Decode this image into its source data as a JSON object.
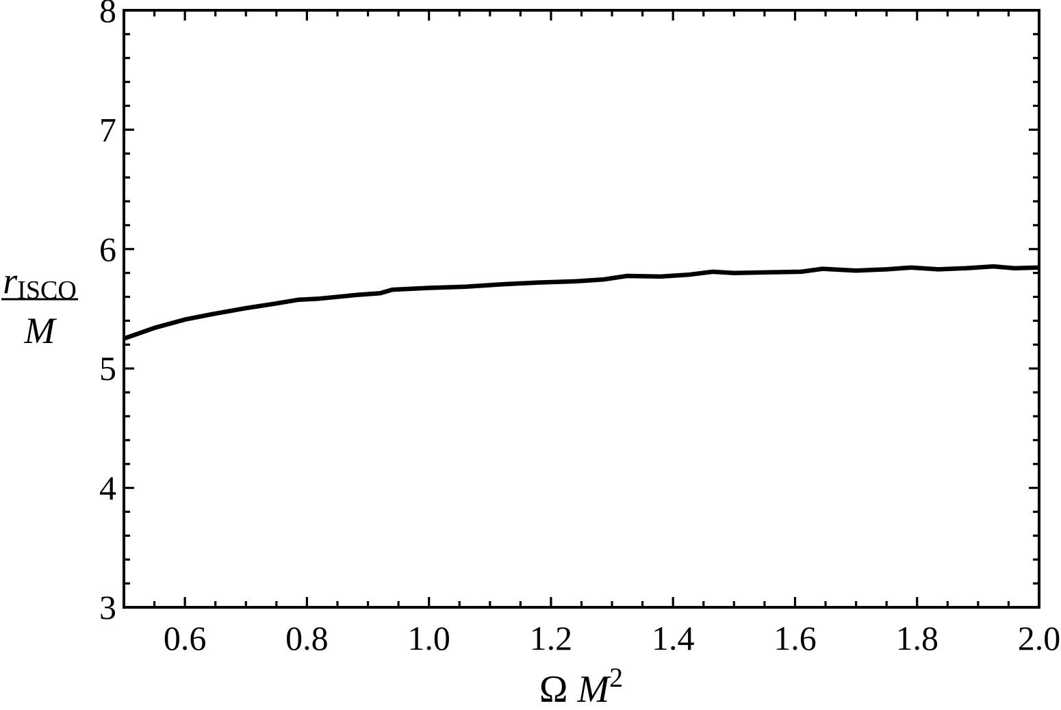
{
  "colors": {
    "background": "#ffffff",
    "frame": "#000000",
    "curve": "#000000",
    "text": "#000000"
  },
  "chart_data": {
    "type": "line",
    "title": "",
    "grid": false,
    "legend": "none",
    "frame": true,
    "xlabel": {
      "base": "Ω ",
      "variable": "M",
      "superscript": "2",
      "plain": "Omega M^2"
    },
    "ylabel": {
      "numerator_variable": "r",
      "numerator_subscript": "ISCO",
      "denominator": "M",
      "plain": "r_ISCO / M"
    },
    "xlim": [
      0.5,
      2.0
    ],
    "ylim": [
      3.0,
      8.0
    ],
    "x_major_ticks": [
      0.6,
      0.8,
      1.0,
      1.2,
      1.4,
      1.6,
      1.8,
      2.0
    ],
    "x_major_tick_labels": [
      "0.6",
      "0.8",
      "1.0",
      "1.2",
      "1.4",
      "1.6",
      "1.8",
      "2.0"
    ],
    "x_minor_tick_step": 0.05,
    "y_major_ticks": [
      3,
      4,
      5,
      6,
      7,
      8
    ],
    "y_major_tick_labels": [
      "3",
      "4",
      "5",
      "6",
      "7",
      "8"
    ],
    "y_minor_tick_step": 0.2,
    "series": [
      {
        "name": "r_ISCO/M",
        "color": "#000000",
        "x": [
          0.5,
          0.55,
          0.6,
          0.645,
          0.7,
          0.75,
          0.785,
          0.82,
          0.88,
          0.92,
          0.94,
          1.0,
          1.06,
          1.12,
          1.18,
          1.24,
          1.285,
          1.325,
          1.38,
          1.425,
          1.465,
          1.5,
          1.555,
          1.61,
          1.645,
          1.7,
          1.75,
          1.79,
          1.835,
          1.88,
          1.925,
          1.96,
          2.0
        ],
        "y": [
          5.25,
          5.34,
          5.41,
          5.455,
          5.505,
          5.545,
          5.575,
          5.585,
          5.615,
          5.63,
          5.66,
          5.675,
          5.685,
          5.705,
          5.72,
          5.73,
          5.745,
          5.775,
          5.77,
          5.785,
          5.81,
          5.8,
          5.805,
          5.81,
          5.835,
          5.82,
          5.83,
          5.845,
          5.83,
          5.84,
          5.855,
          5.84,
          5.845
        ]
      }
    ]
  }
}
